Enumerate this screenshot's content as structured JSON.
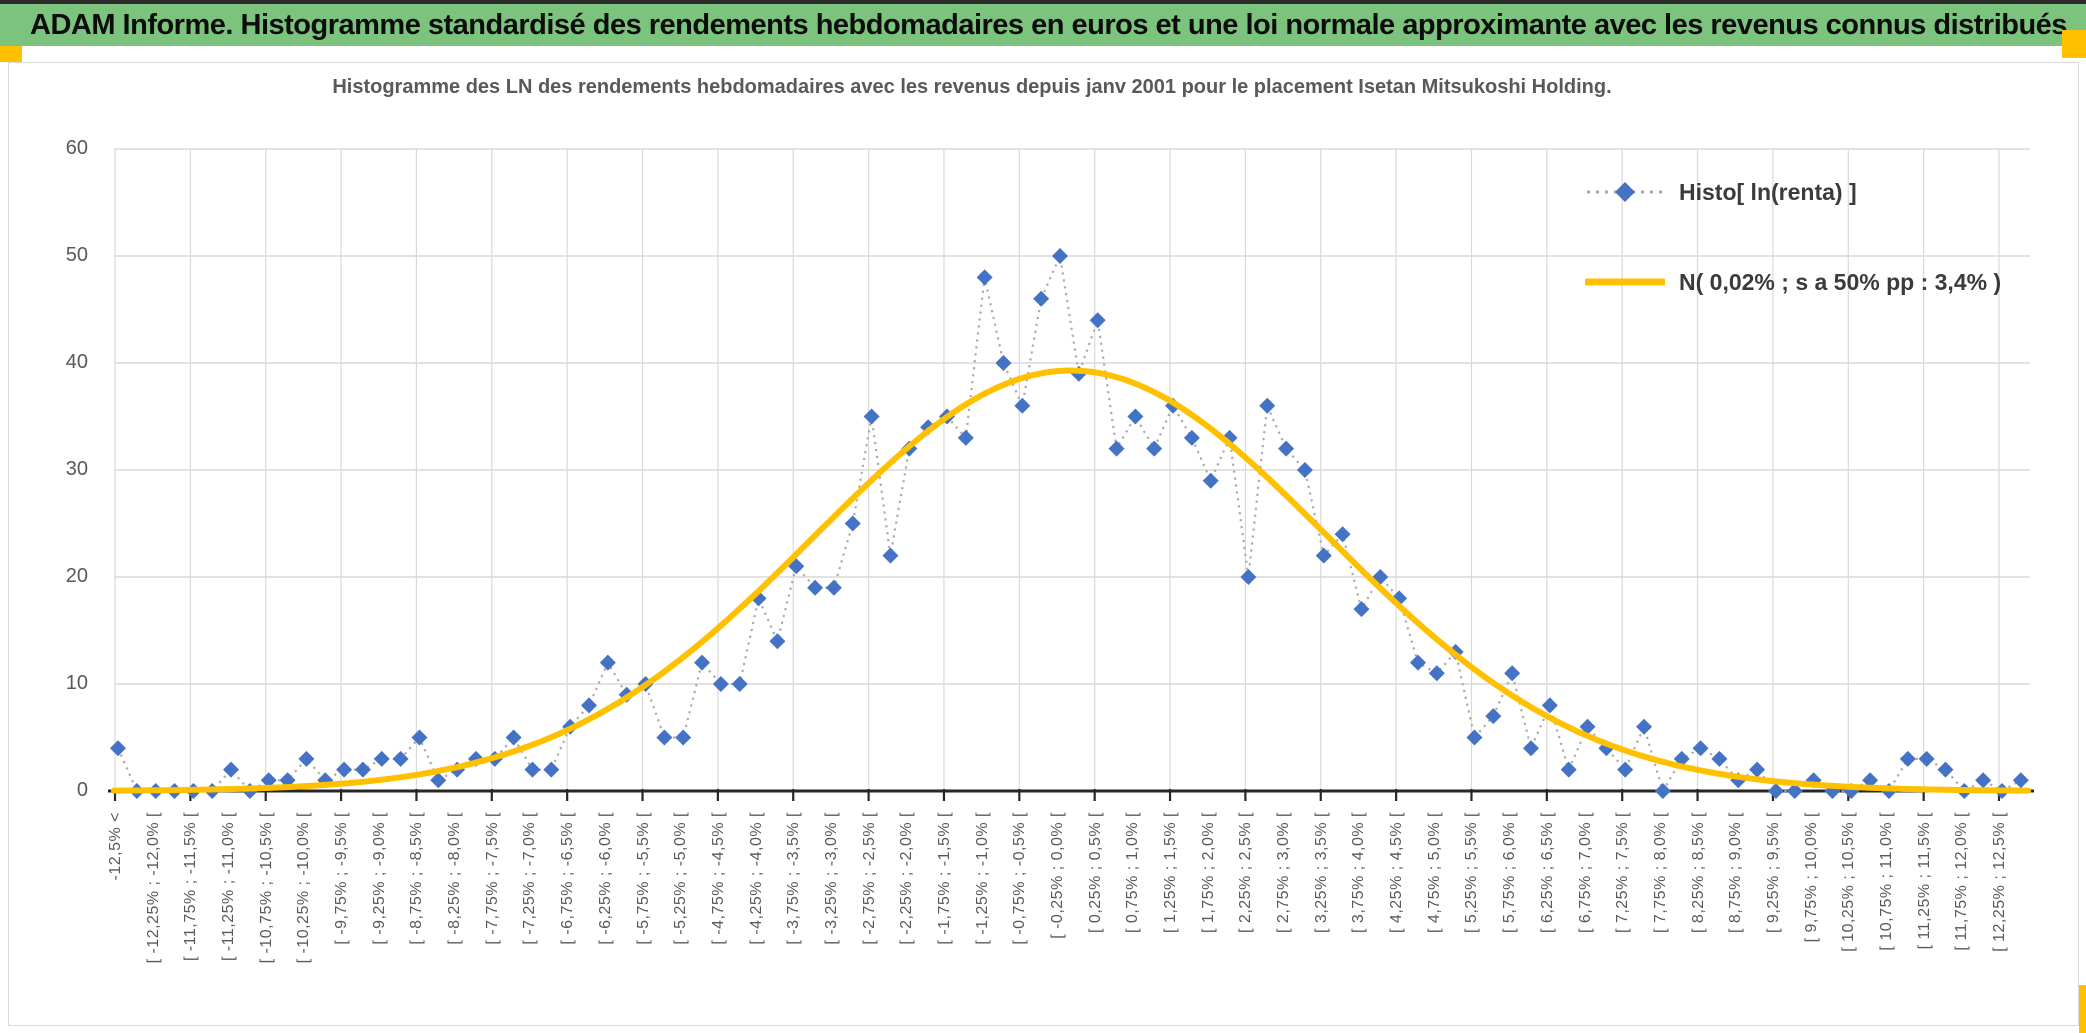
{
  "banner": {
    "title": "ADAM Informe. Histogramme standardisé des rendements hebdomadaires en euros et une loi normale approximante avec les revenus connus distribués"
  },
  "chart": {
    "title": "Histogramme des LN des rendements hebdomadaires avec les revenus depuis janv 2001 pour le placement Isetan Mitsukoshi Holding.",
    "legend": [
      {
        "label": "Histo[ ln(renta) ]",
        "marker": "blue-diamond-dotted-line"
      },
      {
        "label": "N( 0,02% ; s a 50% pp : 3,4% )",
        "marker": "gold-solid-line"
      }
    ]
  },
  "chart_data": {
    "type": "line",
    "title": "Histogramme des LN des rendements hebdomadaires avec les revenus depuis janv 2001 pour le placement Isetan Mitsukoshi Holding.",
    "xlabel": "",
    "ylabel": "",
    "grid": true,
    "legend_position": "top-right",
    "y_axis": {
      "ticks": [
        0,
        10,
        20,
        30,
        40,
        50,
        60
      ],
      "range": [
        0,
        60
      ]
    },
    "x_axis": {
      "bin_width_pct": 0.25,
      "label_every_n_bins": 2,
      "visible_labels": [
        "-12,5% <",
        "[ -12,25% ; -12,0% [",
        "[ -11,75% ; -11,5% [",
        "[ -11,25% ; -11,0% [",
        "[ -10,75% ; -10,5% [",
        "[ -10,25% ; -10,0% [",
        "[ -9,75% ; -9,5% [",
        "[ -9,25% ; -9,0% [",
        "[ -8,75% ; -8,5% [",
        "[ -8,25% ; -8,0% [",
        "[ -7,75% ; -7,5% [",
        "[ -7,25% ; -7,0% [",
        "[ -6,75% ; -6,5% [",
        "[ -6,25% ; -6,0% [",
        "[ -5,75% ; -5,5% [",
        "[ -5,25% ; -5,0% [",
        "[ -4,75% ; -4,5% [",
        "[ -4,25% ; -4,0% [",
        "[ -3,75% ; -3,5% [",
        "[ -3,25% ; -3,0% [",
        "[ -2,75% ; -2,5% [",
        "[ -2,25% ; -2,0% [",
        "[ -1,75% ; -1,5% [",
        "[ -1,25% ; -1,0% [",
        "[ -0,75% ; -0,5% [",
        "[ -0,25% ; 0,0% [",
        "[ 0,25% ; 0,5% [",
        "[ 0,75% ; 1,0% [",
        "[ 1,25% ; 1,5% [",
        "[ 1,75% ; 2,0% [",
        "[ 2,25% ; 2,5% [",
        "[ 2,75% ; 3,0% [",
        "[ 3,25% ; 3,5% [",
        "[ 3,75% ; 4,0% [",
        "[ 4,25% ; 4,5% [",
        "[ 4,75% ; 5,0% [",
        "[ 5,25% ; 5,5% [",
        "[ 5,75% ; 6,0% [",
        "[ 6,25% ; 6,5% [",
        "[ 6,75% ; 7,0% [",
        "[ 7,25% ; 7,5% [",
        "[ 7,75% ; 8,0% [",
        "[ 8,25% ; 8,5% [",
        "[ 8,75% ; 9,0% [",
        "[ 9,25% ; 9,5% [",
        "[ 9,75% ; 10,0% [",
        "[ 10,25% ; 10,5% [",
        "[ 10,75% ; 11,0% [",
        "[ 11,25% ; 11,5% [",
        "[ 11,75% ; 12,0% [",
        "[ 12,25% ; 12,5% ["
      ]
    },
    "series": [
      {
        "name": "Histo[ ln(renta) ]",
        "style": "dotted-line-with-diamond-markers",
        "values": [
          4,
          0,
          0,
          0,
          0,
          0,
          2,
          0,
          1,
          1,
          3,
          1,
          2,
          2,
          3,
          3,
          5,
          1,
          2,
          3,
          3,
          5,
          2,
          2,
          6,
          8,
          12,
          9,
          10,
          5,
          5,
          12,
          10,
          10,
          18,
          14,
          21,
          19,
          19,
          25,
          35,
          22,
          32,
          34,
          35,
          33,
          48,
          40,
          36,
          46,
          50,
          39,
          44,
          32,
          35,
          32,
          36,
          33,
          29,
          33,
          20,
          36,
          32,
          30,
          22,
          24,
          17,
          20,
          18,
          12,
          11,
          13,
          5,
          7,
          11,
          4,
          8,
          2,
          6,
          4,
          2,
          6,
          0,
          3,
          4,
          3,
          1,
          2,
          0,
          0,
          1,
          0,
          0,
          1,
          0,
          3,
          3,
          2,
          0,
          1,
          0,
          1
        ]
      },
      {
        "name": "N( 0,02% ; s a 50% pp : 3,4% )",
        "style": "solid-line",
        "model": {
          "mean_pct": 0.02,
          "sd_pct": 3.4,
          "peak_value": 39.3
        }
      }
    ]
  },
  "colors": {
    "banner_green": "#7CC47E",
    "accent_gold": "#FFC000",
    "series_blue": "#4472C4",
    "dotted_gray": "#ABABAB",
    "grid_gray": "#D9D9D9",
    "axis_black": "#262626",
    "text_gray": "#595959",
    "legend_text": "#3B3B3B"
  }
}
